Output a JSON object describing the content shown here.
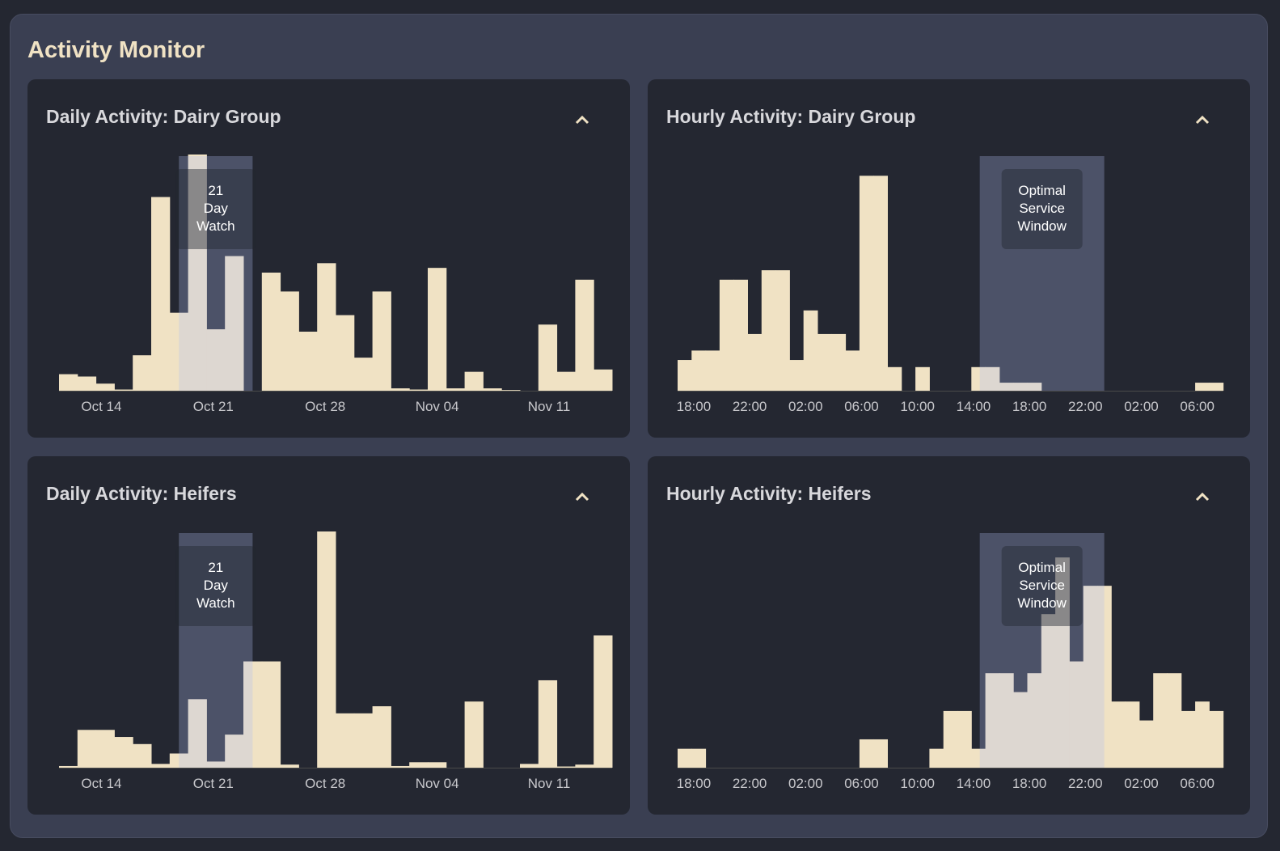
{
  "page": {
    "title": "Activity Monitor"
  },
  "colors": {
    "bar": "#f0e2c4",
    "band": "rgba(177,191,242,0.29)",
    "band_label_bg": "rgba(36,39,49,0.45)",
    "card_bg": "#242731",
    "panel_bg": "#3a3f52",
    "title": "#f0e2c4"
  },
  "icons": {
    "collapse": "chevron-up-icon"
  },
  "chart_data": [
    {
      "id": "daily-dairy",
      "type": "bar",
      "title": "Daily Activity: Dairy Group",
      "x_ticks": [
        "Oct 14",
        "Oct 21",
        "Oct 28",
        "Nov 04",
        "Nov 11"
      ],
      "values": [
        7,
        6,
        3,
        0.5,
        15,
        82,
        33,
        100,
        26,
        57,
        0,
        50,
        42,
        25,
        54,
        32,
        14,
        42,
        1,
        0.5,
        52,
        1,
        8,
        1,
        0.3,
        0,
        28,
        8,
        47,
        9
      ],
      "ylim": [
        0,
        100
      ],
      "band": {
        "label": [
          "21",
          "Day",
          "Watch"
        ],
        "from_bin": 6.5,
        "to_bin": 10.5
      }
    },
    {
      "id": "hourly-dairy",
      "type": "bar",
      "title": "Hourly Activity: Dairy Group",
      "x_ticks": [
        "18:00",
        "22:00",
        "02:00",
        "06:00",
        "10:00",
        "14:00",
        "18:00",
        "22:00",
        "02:00",
        "06:00"
      ],
      "values": [
        13,
        17,
        17,
        47,
        47,
        24,
        51,
        51,
        13,
        34,
        24,
        24,
        17,
        91,
        91,
        10,
        0,
        10,
        0,
        0,
        0,
        10,
        10,
        3.4,
        3.4,
        3.4,
        0,
        0,
        0,
        0,
        0,
        0,
        0,
        0,
        0,
        0,
        0,
        3.4,
        3.4
      ],
      "ylim": [
        0,
        100
      ],
      "band": {
        "label": [
          "Optimal",
          "Service",
          "Window"
        ],
        "from_bin": 21.6,
        "to_bin": 30.5
      }
    },
    {
      "id": "daily-heifers",
      "type": "bar",
      "title": "Daily Activity: Heifers",
      "x_ticks": [
        "Oct 14",
        "Oct 21",
        "Oct 28",
        "Nov 04",
        "Nov 11"
      ],
      "values": [
        0.7,
        16,
        16,
        13,
        10,
        1.6,
        6,
        29,
        2.6,
        14,
        45,
        45,
        1.3,
        0,
        100,
        23,
        23,
        26,
        0.7,
        2.3,
        2.3,
        0,
        28,
        0,
        0,
        1.6,
        37,
        0.5,
        1.3,
        56
      ],
      "ylim": [
        0,
        100
      ],
      "band": {
        "label": [
          "21",
          "Day",
          "Watch"
        ],
        "from_bin": 6.5,
        "to_bin": 10.5
      }
    },
    {
      "id": "hourly-heifers",
      "type": "bar",
      "title": "Hourly Activity: Heifers",
      "x_ticks": [
        "18:00",
        "22:00",
        "02:00",
        "06:00",
        "10:00",
        "14:00",
        "18:00",
        "22:00",
        "02:00",
        "06:00"
      ],
      "values": [
        8,
        8,
        0,
        0,
        0,
        0,
        0,
        0,
        0,
        0,
        0,
        0,
        0,
        12,
        12,
        0,
        0,
        0,
        8,
        24,
        24,
        8,
        40,
        40,
        32,
        40,
        65,
        89,
        45,
        77,
        77,
        28,
        28,
        20,
        40,
        40,
        24,
        28,
        24
      ],
      "ylim": [
        0,
        100
      ],
      "band": {
        "label": [
          "Optimal",
          "Service",
          "Window"
        ],
        "from_bin": 21.6,
        "to_bin": 30.5
      }
    }
  ]
}
